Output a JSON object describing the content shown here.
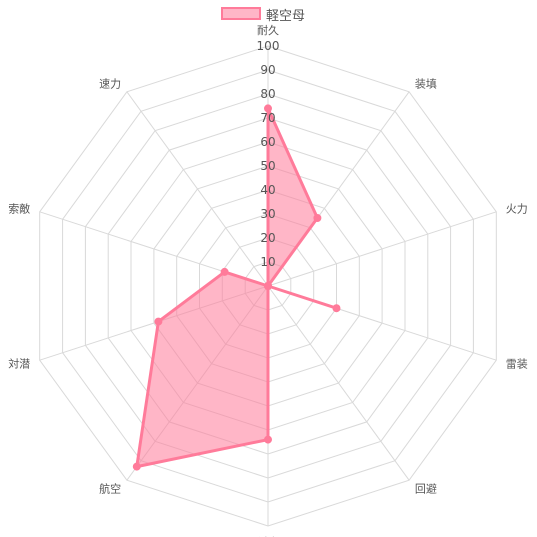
{
  "chart_data": {
    "type": "radar",
    "title": "",
    "axes": [
      "耐久",
      "装填",
      "火力",
      "雷装",
      "回避",
      "対空",
      "航空",
      "対潜",
      "索敵",
      "速力"
    ],
    "series": [
      {
        "name": "軽空母",
        "values": [
          74,
          35,
          0,
          30,
          0,
          64,
          93,
          48,
          19,
          0
        ],
        "color": "#ff7b9a",
        "fill": "rgba(255,122,153,0.55)"
      }
    ],
    "rmax": 100,
    "ticks": [
      10,
      20,
      30,
      40,
      50,
      60,
      70,
      80,
      90,
      100
    ],
    "grid": true,
    "legend_position": "top"
  }
}
